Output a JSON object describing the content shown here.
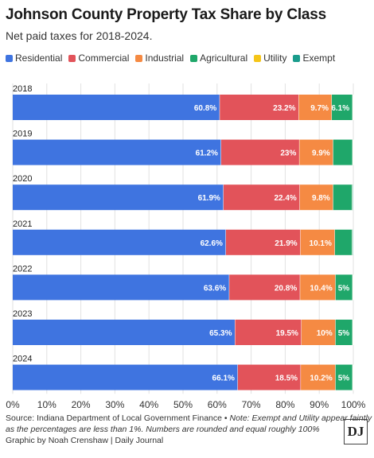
{
  "title": "Johnson County Property Tax Share by Class",
  "subtitle": "Net paid taxes for 2018-2024.",
  "legend": [
    {
      "label": "Residential",
      "color": "#3f74e0"
    },
    {
      "label": "Commercial",
      "color": "#e2535a"
    },
    {
      "label": "Industrial",
      "color": "#f58a43"
    },
    {
      "label": "Agricultural",
      "color": "#1fa76a"
    },
    {
      "label": "Utility",
      "color": "#f5c518"
    },
    {
      "label": "Exempt",
      "color": "#1a9c8c"
    }
  ],
  "footer": {
    "source": "Source: Indiana Department of Local Government Finance •",
    "note": "Note: Exempt and Utility appear faintly as the percentages are less than 1%. Numbers are rounded and equal roughly 100%",
    "credit": "Graphic by Noah Crenshaw | Daily Journal",
    "logo": "DJ"
  },
  "chart_data": {
    "type": "bar",
    "orientation": "horizontal",
    "stacked": true,
    "categories": [
      "2018",
      "2019",
      "2020",
      "2021",
      "2022",
      "2023",
      "2024"
    ],
    "series": [
      {
        "name": "Residential",
        "color": "#3f74e0",
        "values": [
          60.8,
          61.2,
          61.9,
          62.6,
          63.6,
          65.3,
          66.1
        ],
        "labels": [
          "60.8%",
          "61.2%",
          "61.9%",
          "62.6%",
          "63.6%",
          "65.3%",
          "66.1%"
        ]
      },
      {
        "name": "Commercial",
        "color": "#e2535a",
        "values": [
          23.2,
          23,
          22.4,
          21.9,
          20.8,
          19.5,
          18.5
        ],
        "labels": [
          "23.2%",
          "23%",
          "22.4%",
          "21.9%",
          "20.8%",
          "19.5%",
          "18.5%"
        ]
      },
      {
        "name": "Industrial",
        "color": "#f58a43",
        "values": [
          9.7,
          9.9,
          9.8,
          10.1,
          10.4,
          10,
          10.2
        ],
        "labels": [
          "9.7%",
          "9.9%",
          "9.8%",
          "10.1%",
          "10.4%",
          "10%",
          "10.2%"
        ]
      },
      {
        "name": "Agricultural",
        "color": "#1fa76a",
        "values": [
          6.1,
          5.7,
          5.6,
          5.1,
          5,
          5,
          5
        ],
        "labels": [
          "6.1%",
          "",
          "",
          "",
          "5%",
          "5%",
          "5%"
        ]
      },
      {
        "name": "Utility",
        "color": "#f5c518",
        "values": [
          0.1,
          0.1,
          0.1,
          0.1,
          0.1,
          0.1,
          0.1
        ],
        "labels": [
          "",
          "",
          "",
          "",
          "",
          "",
          ""
        ]
      },
      {
        "name": "Exempt",
        "color": "#1a9c8c",
        "values": [
          0.1,
          0.1,
          0.2,
          0.2,
          0.1,
          0.1,
          0.1
        ],
        "labels": [
          "",
          "",
          "",
          "",
          "",
          "",
          ""
        ]
      }
    ],
    "xlim": [
      0,
      100
    ],
    "xticks": [
      "0%",
      "10%",
      "20%",
      "30%",
      "40%",
      "50%",
      "60%",
      "70%",
      "80%",
      "90%",
      "100%"
    ],
    "grid": true,
    "legend_position": "top-left"
  }
}
